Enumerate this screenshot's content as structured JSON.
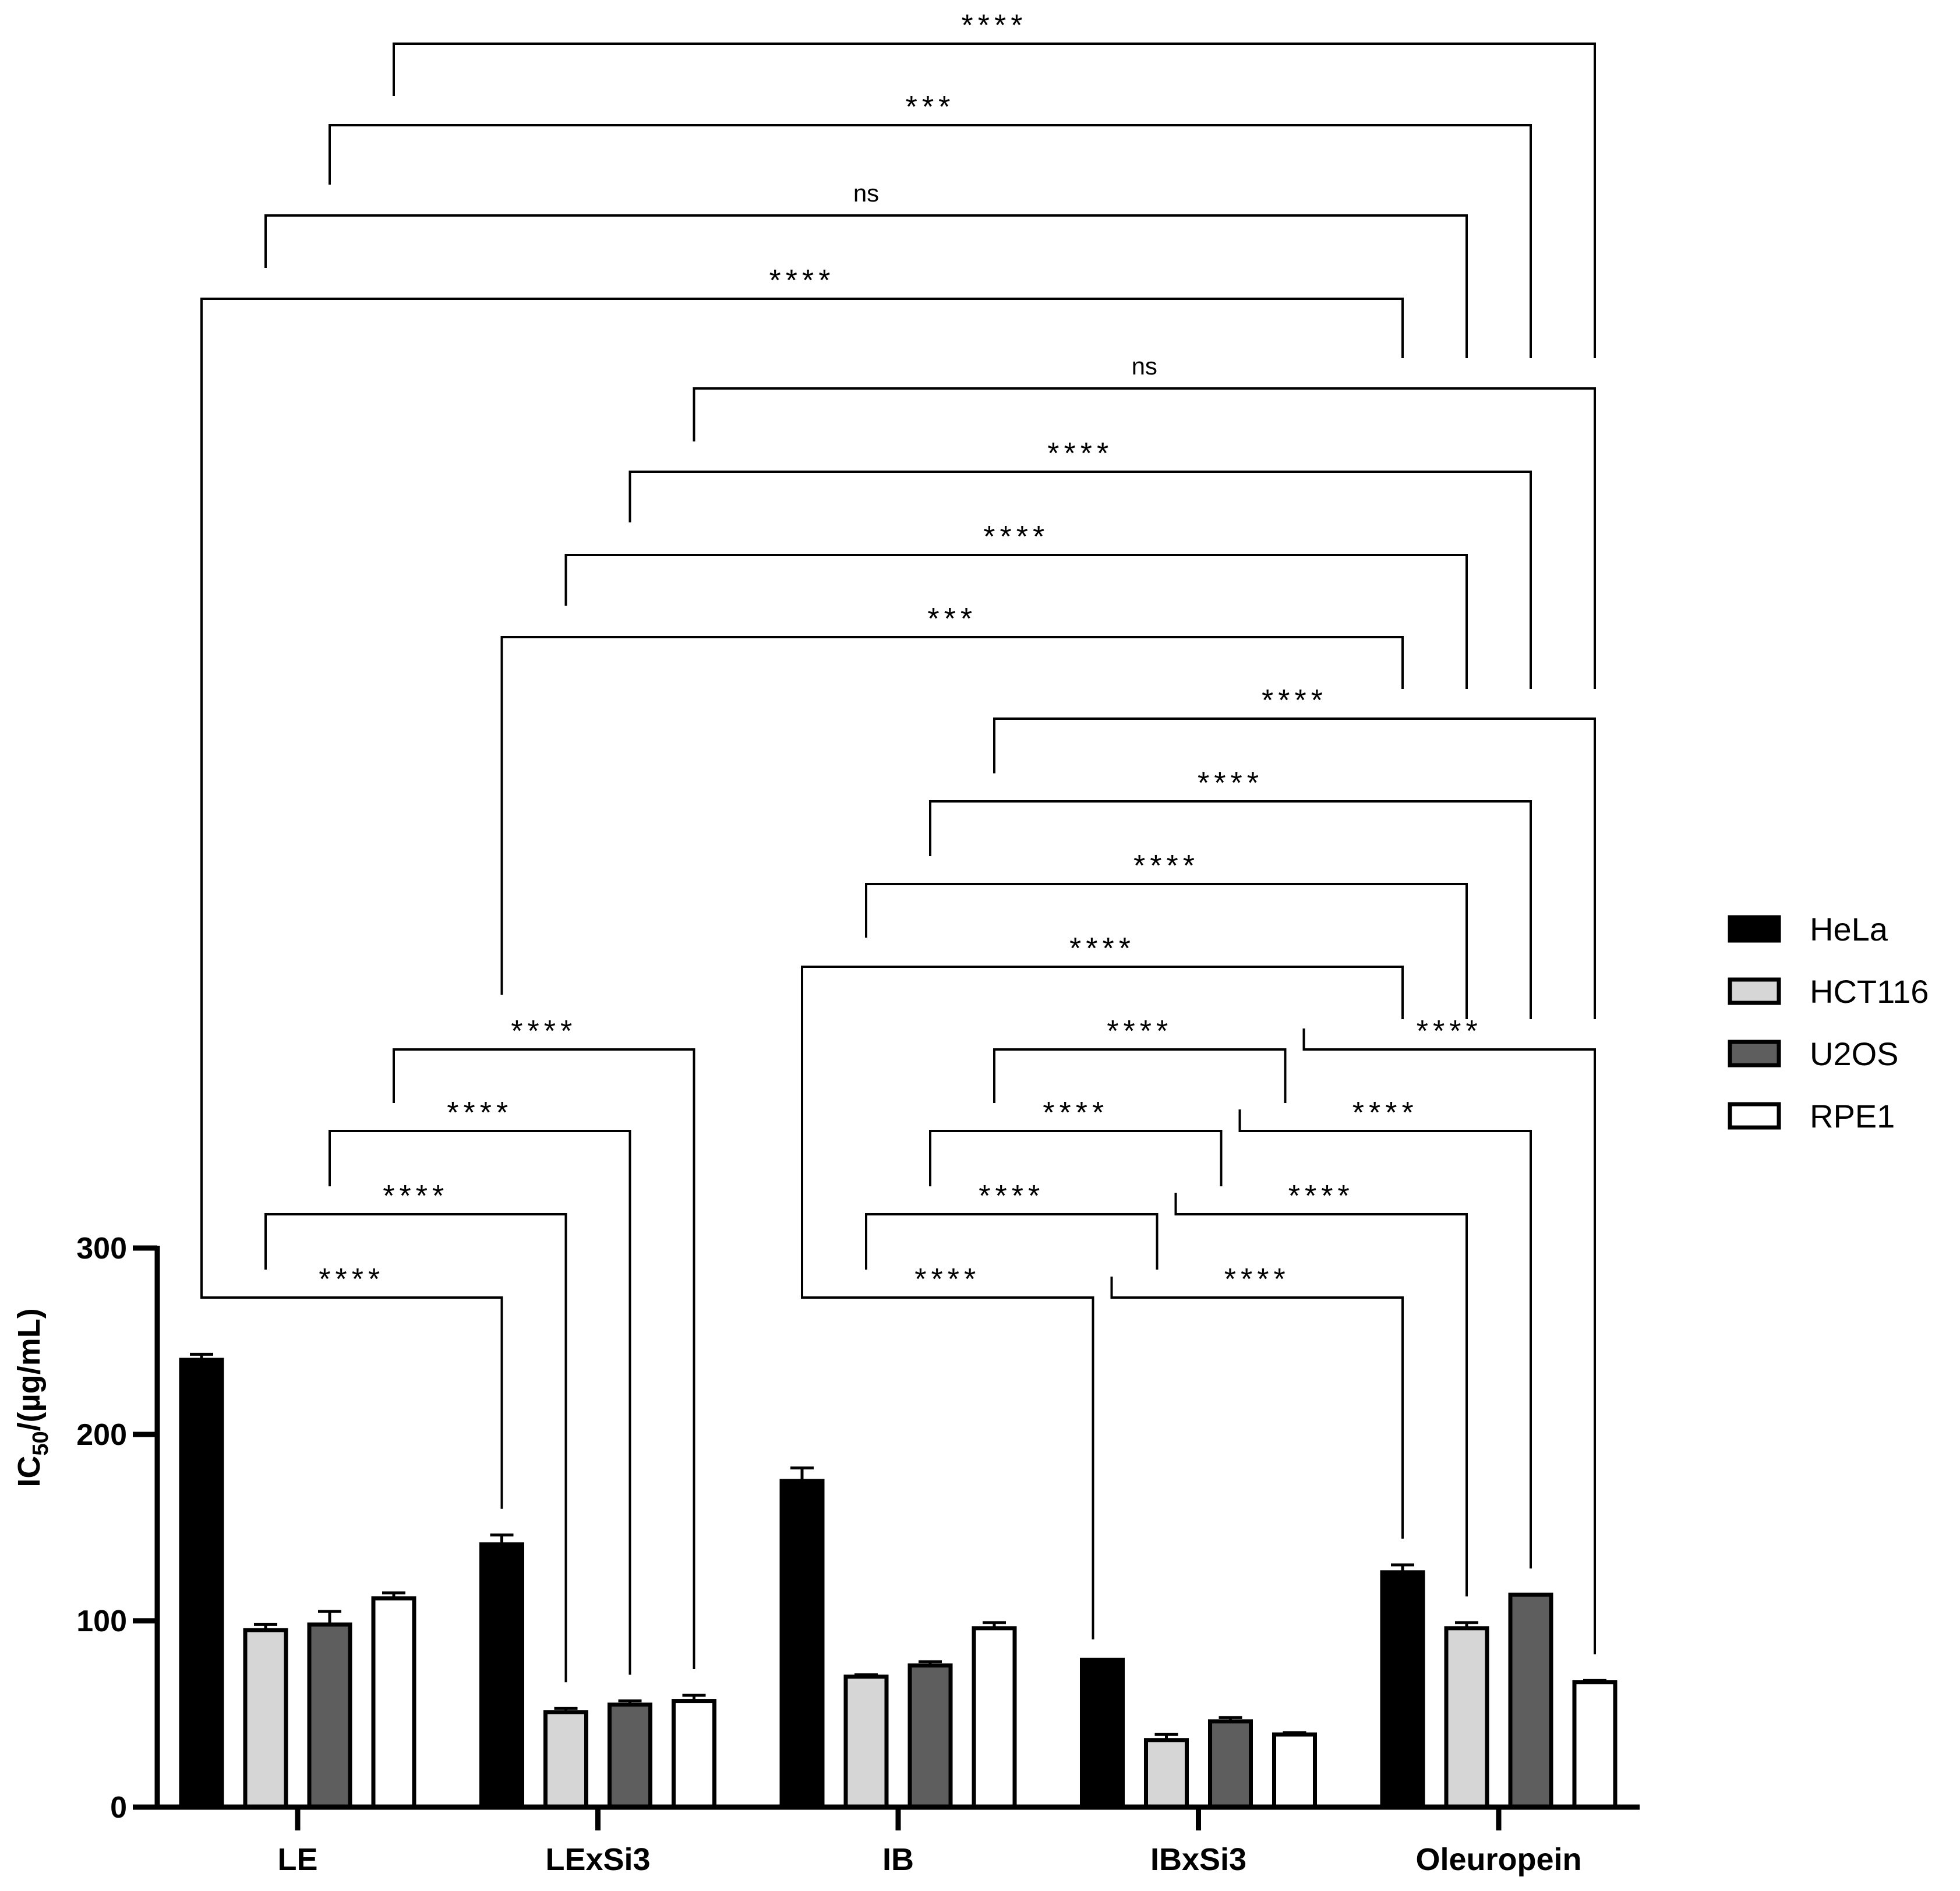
{
  "chart_data": {
    "type": "bar",
    "title": "",
    "xlabel": "",
    "ylabel": "IC50/(µg/mL)",
    "ylabel_parts": {
      "main": "IC",
      "sub": "50",
      "rest": "/(µg/mL)"
    },
    "ylim": [
      0,
      300
    ],
    "yticks": [
      "0",
      "100",
      "200",
      "300"
    ],
    "categories": [
      "LE",
      "LExSi3",
      "IB",
      "IBxSi3",
      "Oleuropein"
    ],
    "series": [
      {
        "name": "HeLa",
        "color": "#000000",
        "values": [
          240,
          141,
          175,
          79,
          126
        ],
        "errors": [
          3,
          5,
          7,
          0,
          4
        ]
      },
      {
        "name": "HCT116",
        "color": "#d6d6d6",
        "values": [
          95,
          51,
          70,
          36,
          96
        ],
        "errors": [
          3,
          2,
          1,
          3,
          3
        ]
      },
      {
        "name": "U2OS",
        "color": "#5e5e5e",
        "values": [
          98,
          55,
          76,
          46,
          114
        ],
        "errors": [
          7,
          2,
          2,
          2,
          0
        ]
      },
      {
        "name": "RPE1",
        "color": "#ffffff",
        "values": [
          112,
          57,
          96,
          39,
          67
        ],
        "errors": [
          3,
          3,
          3,
          1,
          1
        ]
      }
    ],
    "legend": {
      "placement": "right",
      "entries": [
        "HeLa",
        "HCT116",
        "U2OS",
        "RPE1"
      ]
    },
    "comparisons": [
      {
        "series": "HeLa",
        "from": "LE",
        "to": "LExSi3",
        "label": "****"
      },
      {
        "series": "HCT116",
        "from": "LE",
        "to": "LExSi3",
        "label": "****"
      },
      {
        "series": "U2OS",
        "from": "LE",
        "to": "LExSi3",
        "label": "****"
      },
      {
        "series": "RPE1",
        "from": "LE",
        "to": "LExSi3",
        "label": "****"
      },
      {
        "series": "HeLa",
        "from": "IB",
        "to": "IBxSi3",
        "label": "****"
      },
      {
        "series": "HCT116",
        "from": "IB",
        "to": "IBxSi3",
        "label": "****"
      },
      {
        "series": "U2OS",
        "from": "IB",
        "to": "IBxSi3",
        "label": "****"
      },
      {
        "series": "RPE1",
        "from": "IB",
        "to": "IBxSi3",
        "label": "****"
      },
      {
        "series": "HeLa",
        "from": "IBxSi3",
        "to": "Oleuropein",
        "label": "****"
      },
      {
        "series": "HCT116",
        "from": "IBxSi3",
        "to": "Oleuropein",
        "label": "****"
      },
      {
        "series": "U2OS",
        "from": "IBxSi3",
        "to": "Oleuropein",
        "label": "****"
      },
      {
        "series": "RPE1",
        "from": "IBxSi3",
        "to": "Oleuropein",
        "label": "****"
      },
      {
        "series": "HeLa",
        "from": "IB",
        "to": "Oleuropein",
        "label": "****"
      },
      {
        "series": "HCT116",
        "from": "IB",
        "to": "Oleuropein",
        "label": "****"
      },
      {
        "series": "U2OS",
        "from": "IB",
        "to": "Oleuropein",
        "label": "****"
      },
      {
        "series": "RPE1",
        "from": "IB",
        "to": "Oleuropein",
        "label": "****"
      },
      {
        "series": "HeLa",
        "from": "LExSi3",
        "to": "Oleuropein",
        "label": "***"
      },
      {
        "series": "HCT116",
        "from": "LExSi3",
        "to": "Oleuropein",
        "label": "****"
      },
      {
        "series": "U2OS",
        "from": "LExSi3",
        "to": "Oleuropein",
        "label": "****"
      },
      {
        "series": "RPE1",
        "from": "LExSi3",
        "to": "Oleuropein",
        "label": "ns"
      },
      {
        "series": "HeLa",
        "from": "LE",
        "to": "Oleuropein",
        "label": "****"
      },
      {
        "series": "HCT116",
        "from": "LE",
        "to": "Oleuropein",
        "label": "ns"
      },
      {
        "series": "U2OS",
        "from": "LE",
        "to": "Oleuropein",
        "label": "***"
      },
      {
        "series": "RPE1",
        "from": "LE",
        "to": "Oleuropein",
        "label": "****"
      }
    ]
  }
}
